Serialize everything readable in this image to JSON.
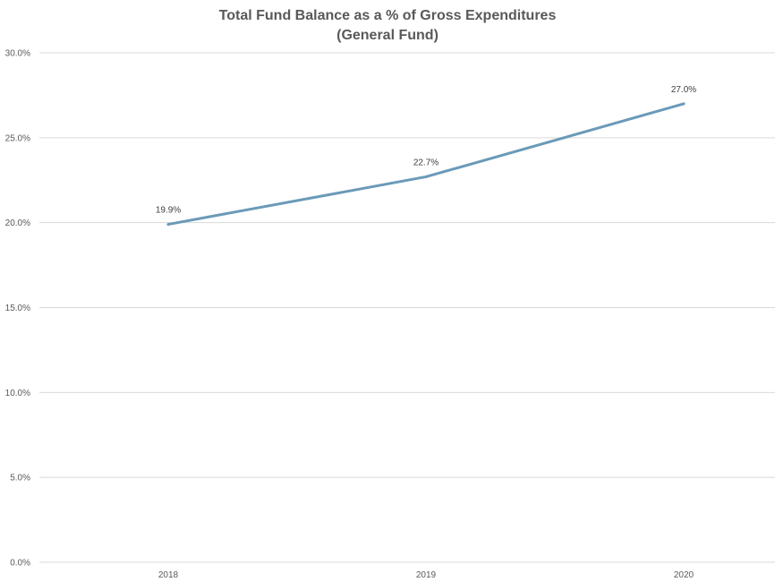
{
  "chart_data": {
    "type": "line",
    "title": "Total Fund Balance as a % of Gross Expenditures",
    "subtitle": "(General Fund)",
    "categories": [
      "2018",
      "2019",
      "2020"
    ],
    "series": [
      {
        "values": [
          19.9,
          22.7,
          27.0
        ],
        "labels": [
          "19.9%",
          "22.7%",
          "27.0%"
        ],
        "color": "#6a9ab8"
      }
    ],
    "ylim": [
      0,
      30
    ],
    "yticks": [
      {
        "value": 0,
        "label": "0.0%"
      },
      {
        "value": 5,
        "label": "5.0%"
      },
      {
        "value": 10,
        "label": "10.0%"
      },
      {
        "value": 15,
        "label": "15.0%"
      },
      {
        "value": 20,
        "label": "20.0%"
      },
      {
        "value": 25,
        "label": "25.0%"
      },
      {
        "value": 30,
        "label": "30.0%"
      }
    ],
    "grid": true,
    "legend": "none"
  }
}
